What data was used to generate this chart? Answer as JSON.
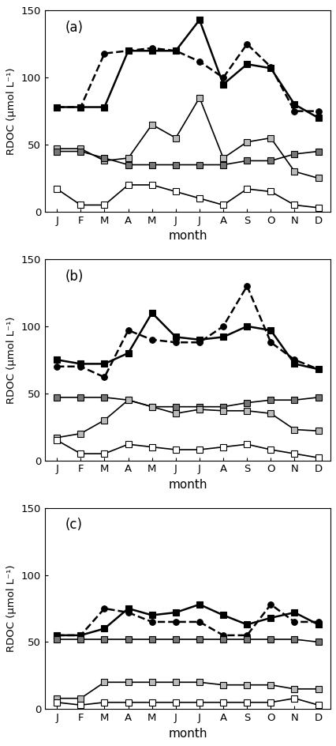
{
  "months": [
    "J",
    "F",
    "M",
    "A",
    "M",
    "J",
    "J",
    "A",
    "S",
    "O",
    "N",
    "D"
  ],
  "panels": [
    {
      "label": "(a)",
      "series": [
        {
          "name": "black_square_solid",
          "values": [
            78,
            78,
            78,
            120,
            120,
            120,
            143,
            95,
            110,
            107,
            80,
            70
          ],
          "linecolor": "#000000",
          "marker": "s",
          "markerfc": "#000000",
          "linestyle": "-",
          "linewidth": 1.8,
          "markersize": 5.5
        },
        {
          "name": "black_circle_dashed",
          "values": [
            78,
            78,
            118,
            120,
            122,
            120,
            112,
            100,
            125,
            108,
            75,
            75
          ],
          "linecolor": "#000000",
          "marker": "o",
          "markerfc": "#000000",
          "linestyle": "--",
          "linewidth": 1.8,
          "markersize": 5.5
        },
        {
          "name": "lightgray_square",
          "values": [
            47,
            47,
            38,
            40,
            65,
            55,
            85,
            40,
            52,
            55,
            30,
            25
          ],
          "linecolor": "#000000",
          "marker": "s",
          "markerfc": "#bbbbbb",
          "linestyle": "-",
          "linewidth": 1.2,
          "markersize": 5.5
        },
        {
          "name": "darkgray_square",
          "values": [
            45,
            45,
            40,
            35,
            35,
            35,
            35,
            35,
            38,
            38,
            43,
            45
          ],
          "linecolor": "#000000",
          "marker": "s",
          "markerfc": "#777777",
          "linestyle": "-",
          "linewidth": 1.2,
          "markersize": 5.5
        },
        {
          "name": "white_square",
          "values": [
            17,
            5,
            5,
            20,
            20,
            15,
            10,
            5,
            17,
            15,
            5,
            3
          ],
          "linecolor": "#000000",
          "marker": "s",
          "markerfc": "#ffffff",
          "linestyle": "-",
          "linewidth": 1.2,
          "markersize": 5.5
        }
      ]
    },
    {
      "label": "(b)",
      "series": [
        {
          "name": "black_square_solid",
          "values": [
            75,
            72,
            72,
            80,
            110,
            92,
            90,
            92,
            100,
            97,
            72,
            68
          ],
          "linecolor": "#000000",
          "marker": "s",
          "markerfc": "#000000",
          "linestyle": "-",
          "linewidth": 1.8,
          "markersize": 5.5
        },
        {
          "name": "black_circle_dashed",
          "values": [
            70,
            70,
            62,
            97,
            90,
            88,
            88,
            100,
            130,
            88,
            75,
            68
          ],
          "linecolor": "#000000",
          "marker": "o",
          "markerfc": "#000000",
          "linestyle": "--",
          "linewidth": 1.8,
          "markersize": 5.5
        },
        {
          "name": "darkgray_square",
          "values": [
            47,
            47,
            47,
            45,
            40,
            40,
            40,
            40,
            43,
            45,
            45,
            47
          ],
          "linecolor": "#000000",
          "marker": "s",
          "markerfc": "#777777",
          "linestyle": "-",
          "linewidth": 1.2,
          "markersize": 5.5
        },
        {
          "name": "lightgray_square",
          "values": [
            17,
            20,
            30,
            45,
            40,
            35,
            38,
            37,
            37,
            35,
            23,
            22
          ],
          "linecolor": "#000000",
          "marker": "s",
          "markerfc": "#bbbbbb",
          "linestyle": "-",
          "linewidth": 1.2,
          "markersize": 5.5
        },
        {
          "name": "white_square",
          "values": [
            15,
            5,
            5,
            12,
            10,
            8,
            8,
            10,
            12,
            8,
            5,
            2
          ],
          "linecolor": "#000000",
          "marker": "s",
          "markerfc": "#ffffff",
          "linestyle": "-",
          "linewidth": 1.2,
          "markersize": 5.5
        }
      ]
    },
    {
      "label": "(c)",
      "series": [
        {
          "name": "black_square_solid",
          "values": [
            55,
            55,
            60,
            75,
            70,
            72,
            78,
            70,
            63,
            68,
            72,
            63
          ],
          "linecolor": "#000000",
          "marker": "s",
          "markerfc": "#000000",
          "linestyle": "-",
          "linewidth": 1.8,
          "markersize": 5.5
        },
        {
          "name": "black_circle_dashed",
          "values": [
            55,
            55,
            75,
            72,
            65,
            65,
            65,
            55,
            55,
            78,
            65,
            65
          ],
          "linecolor": "#000000",
          "marker": "o",
          "markerfc": "#000000",
          "linestyle": "--",
          "linewidth": 1.8,
          "markersize": 5.5
        },
        {
          "name": "gray_square",
          "values": [
            52,
            52,
            52,
            52,
            52,
            52,
            52,
            52,
            52,
            52,
            52,
            50
          ],
          "linecolor": "#000000",
          "marker": "s",
          "markerfc": "#777777",
          "linestyle": "-",
          "linewidth": 1.2,
          "markersize": 5.5
        },
        {
          "name": "lightgray_square",
          "values": [
            8,
            8,
            20,
            20,
            20,
            20,
            20,
            18,
            18,
            18,
            15,
            15
          ],
          "linecolor": "#000000",
          "marker": "s",
          "markerfc": "#bbbbbb",
          "linestyle": "-",
          "linewidth": 1.2,
          "markersize": 5.5
        },
        {
          "name": "white_square",
          "values": [
            5,
            3,
            5,
            5,
            5,
            5,
            5,
            5,
            5,
            5,
            8,
            3
          ],
          "linecolor": "#000000",
          "marker": "s",
          "markerfc": "#ffffff",
          "linestyle": "-",
          "linewidth": 1.2,
          "markersize": 5.5
        }
      ]
    }
  ],
  "ylabel": "RDOC (μmol L⁻¹)",
  "xlabel": "month",
  "ylim": [
    0,
    150
  ],
  "yticks": [
    0,
    50,
    100,
    150
  ],
  "background_color": "#ffffff",
  "figsize": [
    4.27,
    9.44
  ],
  "dpi": 100
}
